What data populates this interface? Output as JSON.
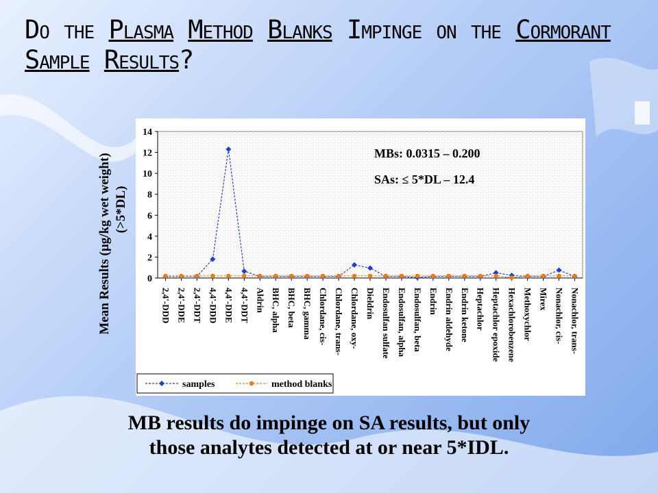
{
  "slide": {
    "title_parts": [
      "Do the ",
      "Plasma",
      " ",
      "Method",
      " ",
      "Blanks",
      " Impinge on the ",
      "Cormorant",
      " ",
      "Sample",
      " ",
      "Results",
      "?"
    ],
    "conclusion_line1": "MB results do impinge on SA results, but only",
    "conclusion_line2": "those analytes detected at or near 5*IDL."
  },
  "chart_data": {
    "type": "line",
    "ylabel_line1": "Mean Results (µg/kg wet weight)",
    "ylabel_line2": "(>5*DL)",
    "ylim": [
      0,
      14
    ],
    "yticks": [
      0,
      2,
      4,
      6,
      8,
      10,
      12,
      14
    ],
    "grid": false,
    "legend_position": "bottom",
    "annotations": [
      "MBs: 0.0315 – 0.200",
      "SAs: ≤ 5*DL – 12.4"
    ],
    "categories": [
      "2,4'-DDD",
      "2,4'-DDE",
      "2,4'-DDT",
      "4,4'-DDD",
      "4,4'-DDE",
      "4,4'-DDT",
      "Aldrin",
      "BHC, alpha",
      "BHC, beta",
      "BHC, gamma",
      "Chlordane, cis-",
      "Chlordane, trans-",
      "Chlordane, oxy-",
      "Dieldrin",
      "Endosulfan sulfate",
      "Endosulfan, alpha",
      "Endosulfan, beta",
      "Endrin",
      "Endrin aldehyde",
      "Endrin ketone",
      "Heptachlor",
      "Heptachlor epoxide",
      "Hexachlorobenzene",
      "Methoxychlor",
      "Mirex",
      "Nonachlor, cis-",
      "Nonachlor, trans-"
    ],
    "series": [
      {
        "name": "samples",
        "color": "#1f3fd0",
        "values": [
          0.15,
          0.15,
          0.15,
          1.8,
          12.3,
          0.65,
          0.15,
          0.15,
          0.15,
          0.15,
          0.15,
          0.15,
          1.25,
          0.95,
          0.15,
          0.15,
          0.05,
          0.15,
          0.15,
          0.15,
          0.15,
          0.5,
          0.25,
          0.15,
          0.15,
          0.75,
          0.15
        ]
      },
      {
        "name": "method blanks",
        "color": "#f07a10",
        "values": [
          0.2,
          0.2,
          0.2,
          0.2,
          0.2,
          0.2,
          0.2,
          0.2,
          0.2,
          0.2,
          0.2,
          0.2,
          0.2,
          0.2,
          0.2,
          0.2,
          0.2,
          0.2,
          0.2,
          0.2,
          0.2,
          0.2,
          0.03,
          0.2,
          0.2,
          0.2,
          0.2
        ]
      }
    ]
  }
}
